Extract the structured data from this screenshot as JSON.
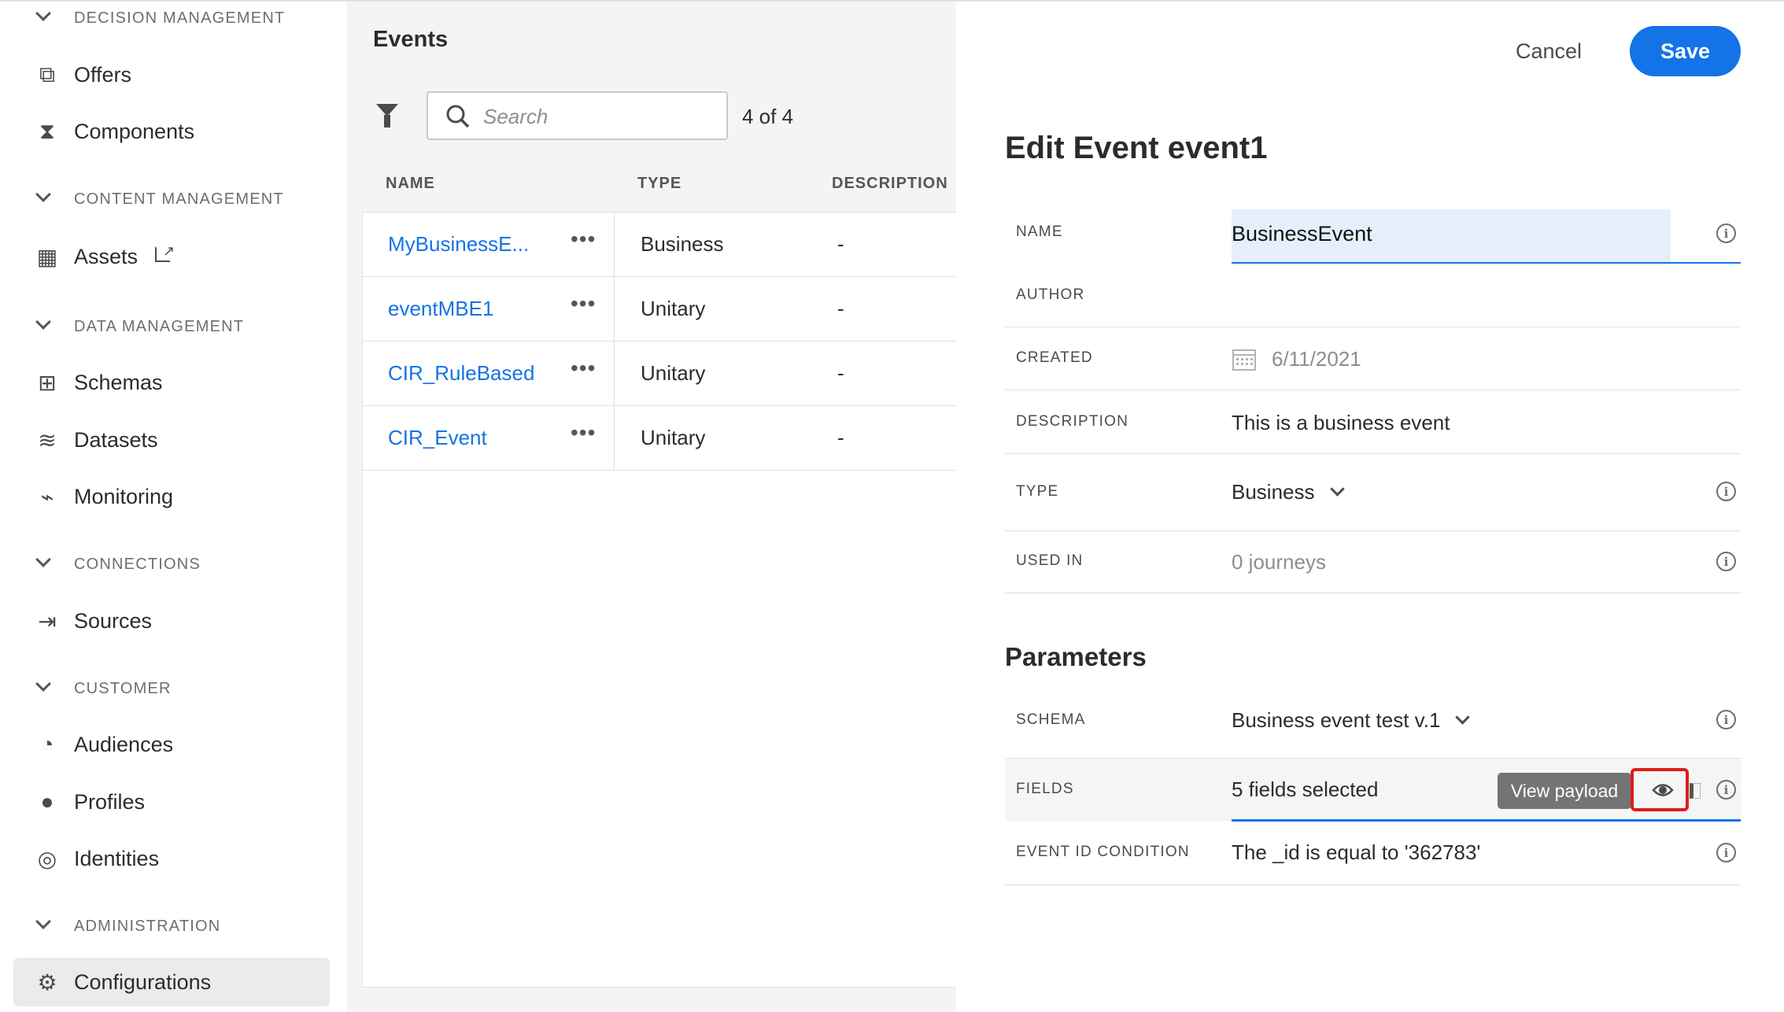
{
  "sidebar": {
    "sections": [
      {
        "label": "DECISION MANAGEMENT",
        "items": [
          {
            "label": "Offers",
            "icon": "offers-icon"
          },
          {
            "label": "Components",
            "icon": "components-icon"
          }
        ]
      },
      {
        "label": "CONTENT MANAGEMENT",
        "items": [
          {
            "label": "Assets",
            "icon": "assets-icon"
          }
        ]
      },
      {
        "label": "DATA MANAGEMENT",
        "items": [
          {
            "label": "Schemas",
            "icon": "schemas-icon"
          },
          {
            "label": "Datasets",
            "icon": "datasets-icon"
          },
          {
            "label": "Monitoring",
            "icon": "monitoring-icon"
          }
        ]
      },
      {
        "label": "CONNECTIONS",
        "items": [
          {
            "label": "Sources",
            "icon": "sources-icon"
          }
        ]
      },
      {
        "label": "CUSTOMER",
        "items": [
          {
            "label": "Audiences",
            "icon": "audiences-icon"
          },
          {
            "label": "Profiles",
            "icon": "profiles-icon"
          },
          {
            "label": "Identities",
            "icon": "identities-icon"
          }
        ]
      },
      {
        "label": "ADMINISTRATION",
        "items": [
          {
            "label": "Configurations",
            "icon": "gear-icon",
            "selected": true
          }
        ]
      }
    ]
  },
  "events": {
    "title": "Events",
    "search_placeholder": "Search",
    "count": "4 of 4",
    "columns": [
      "NAME",
      "TYPE",
      "DESCRIPTION"
    ],
    "rows": [
      {
        "name": "MyBusinessE...",
        "type": "Business",
        "description": "-"
      },
      {
        "name": "eventMBE1",
        "type": "Unitary",
        "description": "-"
      },
      {
        "name": "CIR_RuleBased",
        "type": "Unitary",
        "description": "-"
      },
      {
        "name": "CIR_Event",
        "type": "Unitary",
        "description": "-"
      }
    ]
  },
  "editor": {
    "cancel": "Cancel",
    "save": "Save",
    "title": "Edit Event event1",
    "fields": {
      "name_label": "NAME",
      "name_value": "BusinessEvent",
      "author_label": "AUTHOR",
      "created_label": "CREATED",
      "created_value": "6/11/2021",
      "description_label": "DESCRIPTION",
      "description_value": "This is a business event",
      "type_label": "TYPE",
      "type_value": "Business",
      "used_in_label": "USED IN",
      "used_in_value": "0 journeys"
    },
    "parameters_title": "Parameters",
    "params": {
      "schema_label": "SCHEMA",
      "schema_value": "Business event test v.1",
      "fields_label": "FIELDS",
      "fields_value": "5 fields selected",
      "tooltip": "View payload",
      "event_id_label": "EVENT ID CONDITION",
      "event_id_value": "The _id is equal to '362783'"
    },
    "colors": {
      "accent": "#1473e6",
      "highlight": "#e11b1b"
    }
  }
}
